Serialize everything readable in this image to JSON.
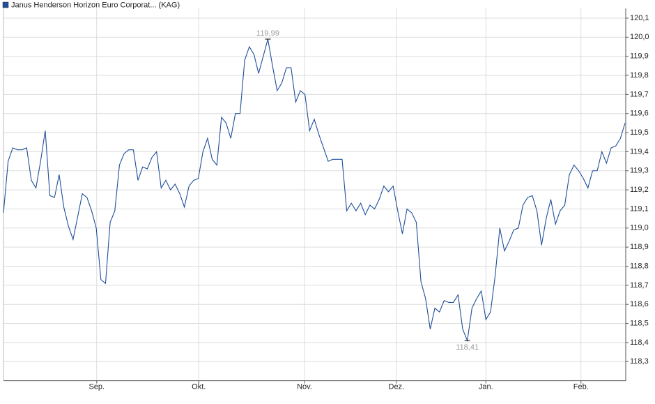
{
  "chart_data": {
    "type": "line",
    "series": [
      {
        "name": "Janus Henderson Horizon Euro Corporat... (KAG)",
        "color": "#1f4e9a",
        "values": [
          119.08,
          119.35,
          119.42,
          119.41,
          119.41,
          119.42,
          119.25,
          119.21,
          119.35,
          119.51,
          119.17,
          119.16,
          119.28,
          119.11,
          119.01,
          118.94,
          119.06,
          119.18,
          119.16,
          119.09,
          119.0,
          118.73,
          118.71,
          119.03,
          119.09,
          119.33,
          119.39,
          119.41,
          119.41,
          119.25,
          119.32,
          119.31,
          119.37,
          119.4,
          119.21,
          119.25,
          119.2,
          119.23,
          119.18,
          119.11,
          119.22,
          119.25,
          119.26,
          119.4,
          119.47,
          119.36,
          119.33,
          119.58,
          119.55,
          119.47,
          119.6,
          119.6,
          119.88,
          119.95,
          119.91,
          119.81,
          119.9,
          119.99,
          119.85,
          119.72,
          119.76,
          119.84,
          119.84,
          119.66,
          119.72,
          119.7,
          119.51,
          119.57,
          119.49,
          119.42,
          119.35,
          119.36,
          119.36,
          119.36,
          119.09,
          119.13,
          119.09,
          119.13,
          119.07,
          119.12,
          119.1,
          119.15,
          119.22,
          119.19,
          119.22,
          119.09,
          118.97,
          119.1,
          119.08,
          119.03,
          118.72,
          118.63,
          118.47,
          118.58,
          118.56,
          118.62,
          118.61,
          118.61,
          118.65,
          118.47,
          118.41,
          118.58,
          118.63,
          118.67,
          118.52,
          118.56,
          118.75,
          119.0,
          118.88,
          118.93,
          118.99,
          119.0,
          119.12,
          119.16,
          119.17,
          119.09,
          118.91,
          119.05,
          119.15,
          119.02,
          119.09,
          119.12,
          119.28,
          119.33,
          119.3,
          119.26,
          119.21,
          119.3,
          119.3,
          119.4,
          119.34,
          119.42,
          119.43,
          119.47,
          119.55
        ]
      }
    ],
    "xlim": [
      0,
      134
    ],
    "xticks": [
      {
        "value": 20.1,
        "label": "Sep."
      },
      {
        "value": 42.1,
        "label": "Okt."
      },
      {
        "value": 64.9,
        "label": "Nov."
      },
      {
        "value": 84.7,
        "label": "Dez."
      },
      {
        "value": 104.0,
        "label": "Jan."
      },
      {
        "value": 124.5,
        "label": "Feb."
      }
    ],
    "ylim": [
      118.2,
      120.15
    ],
    "yticks": [
      {
        "value": 118.3,
        "label": "118,3"
      },
      {
        "value": 118.4,
        "label": "118,4"
      },
      {
        "value": 118.5,
        "label": "118,5"
      },
      {
        "value": 118.6,
        "label": "118,6"
      },
      {
        "value": 118.7,
        "label": "118,7"
      },
      {
        "value": 118.8,
        "label": "118,8"
      },
      {
        "value": 118.9,
        "label": "118,9"
      },
      {
        "value": 119.0,
        "label": "119,0"
      },
      {
        "value": 119.1,
        "label": "119,1"
      },
      {
        "value": 119.2,
        "label": "119,2"
      },
      {
        "value": 119.3,
        "label": "119,3"
      },
      {
        "value": 119.4,
        "label": "119,4"
      },
      {
        "value": 119.5,
        "label": "119,5"
      },
      {
        "value": 119.6,
        "label": "119,6"
      },
      {
        "value": 119.7,
        "label": "119,7"
      },
      {
        "value": 119.8,
        "label": "119,8"
      },
      {
        "value": 119.9,
        "label": "119,9"
      },
      {
        "value": 120.0,
        "label": "120,0"
      },
      {
        "value": 120.1,
        "label": "120,1"
      }
    ],
    "grid": true,
    "annotations": [
      {
        "value": 119.99,
        "label": "119,99",
        "position": "above"
      },
      {
        "value": 118.41,
        "label": "118,41",
        "position": "below"
      }
    ]
  }
}
